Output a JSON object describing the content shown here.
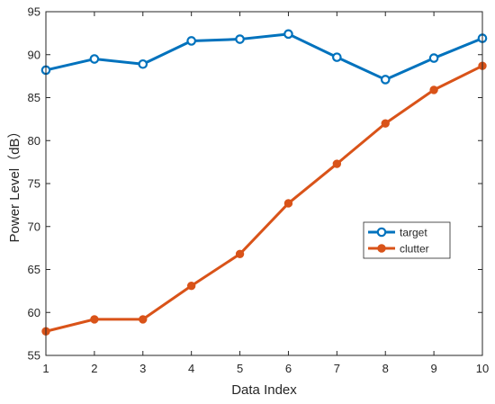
{
  "chart_data": {
    "type": "line",
    "title": "",
    "xlabel": "Data Index",
    "ylabel": "Power Level（dB）",
    "xlim": [
      1,
      10
    ],
    "ylim": [
      55,
      95
    ],
    "x": [
      1,
      2,
      3,
      4,
      5,
      6,
      7,
      8,
      9,
      10
    ],
    "x_ticks": [
      "1",
      "2",
      "3",
      "4",
      "5",
      "6",
      "7",
      "8",
      "9",
      "10"
    ],
    "y_ticks": [
      "55",
      "60",
      "65",
      "70",
      "75",
      "80",
      "85",
      "90",
      "95"
    ],
    "grid": false,
    "legend_position": "right-middle",
    "series": [
      {
        "name": "target",
        "color": "#0072BD",
        "marker": "open-circle",
        "values": [
          88.2,
          89.5,
          88.9,
          91.6,
          91.8,
          92.4,
          89.7,
          87.1,
          89.6,
          91.9
        ]
      },
      {
        "name": "clutter",
        "color": "#D95319",
        "marker": "filled-circle",
        "values": [
          57.8,
          59.2,
          59.2,
          63.1,
          66.8,
          72.7,
          77.3,
          82.0,
          85.9,
          88.7
        ]
      }
    ]
  }
}
